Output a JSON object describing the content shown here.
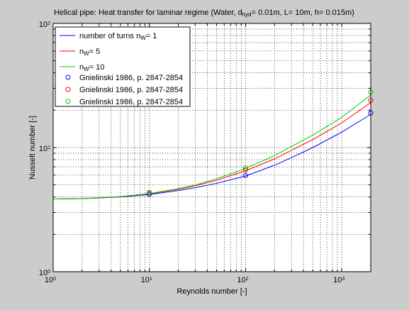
{
  "chart_data": {
    "type": "line",
    "title_parts": [
      {
        "text": "Helical pipe: Heat transfer for laminar regime (Water, d",
        "sub": false
      },
      {
        "text": "hyd",
        "sub": true
      },
      {
        "text": "= 0.01m, L= 10m, h= 0.015m)",
        "sub": false
      }
    ],
    "xlabel": "Reynolds number [-]",
    "ylabel": "Nusselt number [-]",
    "x_scale": "log",
    "y_scale": "log",
    "xlim": [
      1,
      2000
    ],
    "ylim": [
      1,
      100
    ],
    "grid": true,
    "x_ticks": [
      {
        "value": 1,
        "base": "10",
        "exp": "0"
      },
      {
        "value": 10,
        "base": "10",
        "exp": "1"
      },
      {
        "value": 100,
        "base": "10",
        "exp": "2"
      },
      {
        "value": 1000,
        "base": "10",
        "exp": "3"
      }
    ],
    "y_ticks": [
      {
        "value": 1,
        "base": "10",
        "exp": "0"
      },
      {
        "value": 10,
        "base": "10",
        "exp": "1"
      },
      {
        "value": 100,
        "base": "10",
        "exp": "2"
      }
    ],
    "legend_position": "top-left",
    "series": [
      {
        "id": "n1",
        "legend_parts": [
          {
            "text": "number of turns n",
            "sub": false
          },
          {
            "text": "W",
            "sub": true
          },
          {
            "text": "= 1",
            "sub": false
          }
        ],
        "color": "#0000ff",
        "style": "line",
        "x": [
          1,
          2,
          3,
          5,
          10,
          20,
          30,
          50,
          100,
          200,
          300,
          500,
          1000,
          2000
        ],
        "y": [
          3.85,
          3.88,
          3.92,
          4.0,
          4.18,
          4.5,
          4.75,
          5.15,
          5.9,
          7.2,
          8.3,
          10.0,
          13.3,
          18.5
        ]
      },
      {
        "id": "n5",
        "legend_parts": [
          {
            "text": "n",
            "sub": false
          },
          {
            "text": "W",
            "sub": true
          },
          {
            "text": "= 5",
            "sub": false
          }
        ],
        "color": "#ff0000",
        "style": "line",
        "x": [
          1,
          2,
          3,
          5,
          10,
          20,
          30,
          50,
          100,
          200,
          300,
          500,
          1000,
          2000
        ],
        "y": [
          3.85,
          3.88,
          3.93,
          4.02,
          4.23,
          4.6,
          4.92,
          5.45,
          6.5,
          8.1,
          9.5,
          11.6,
          15.8,
          23.0
        ]
      },
      {
        "id": "n10",
        "legend_parts": [
          {
            "text": "n",
            "sub": false
          },
          {
            "text": "W",
            "sub": true
          },
          {
            "text": "= 10",
            "sub": false
          }
        ],
        "color": "#00cc00",
        "style": "line",
        "x": [
          1,
          2,
          3,
          5,
          10,
          20,
          30,
          50,
          100,
          200,
          300,
          500,
          1000,
          2000
        ],
        "y": [
          3.85,
          3.88,
          3.94,
          4.03,
          4.26,
          4.66,
          5.0,
          5.6,
          6.8,
          8.6,
          10.2,
          12.6,
          17.5,
          26.5
        ]
      },
      {
        "id": "g1",
        "legend_parts": [
          {
            "text": "Gnielinski 1986, p. 2847-2854",
            "sub": false
          }
        ],
        "color": "#0000ff",
        "style": "marker",
        "x": [
          10,
          100,
          2000
        ],
        "y": [
          4.2,
          5.95,
          19.0
        ]
      },
      {
        "id": "g5",
        "legend_parts": [
          {
            "text": "Gnielinski 1986, p. 2847-2854",
            "sub": false
          }
        ],
        "color": "#ff0000",
        "style": "marker",
        "x": [
          10,
          100,
          2000
        ],
        "y": [
          4.3,
          6.6,
          24.0
        ]
      },
      {
        "id": "g10",
        "legend_parts": [
          {
            "text": "Gnielinski 1986, p. 2847-2854",
            "sub": false
          }
        ],
        "color": "#00cc00",
        "style": "marker",
        "x": [
          10,
          100,
          2000
        ],
        "y": [
          4.35,
          6.85,
          28.0
        ]
      }
    ]
  }
}
